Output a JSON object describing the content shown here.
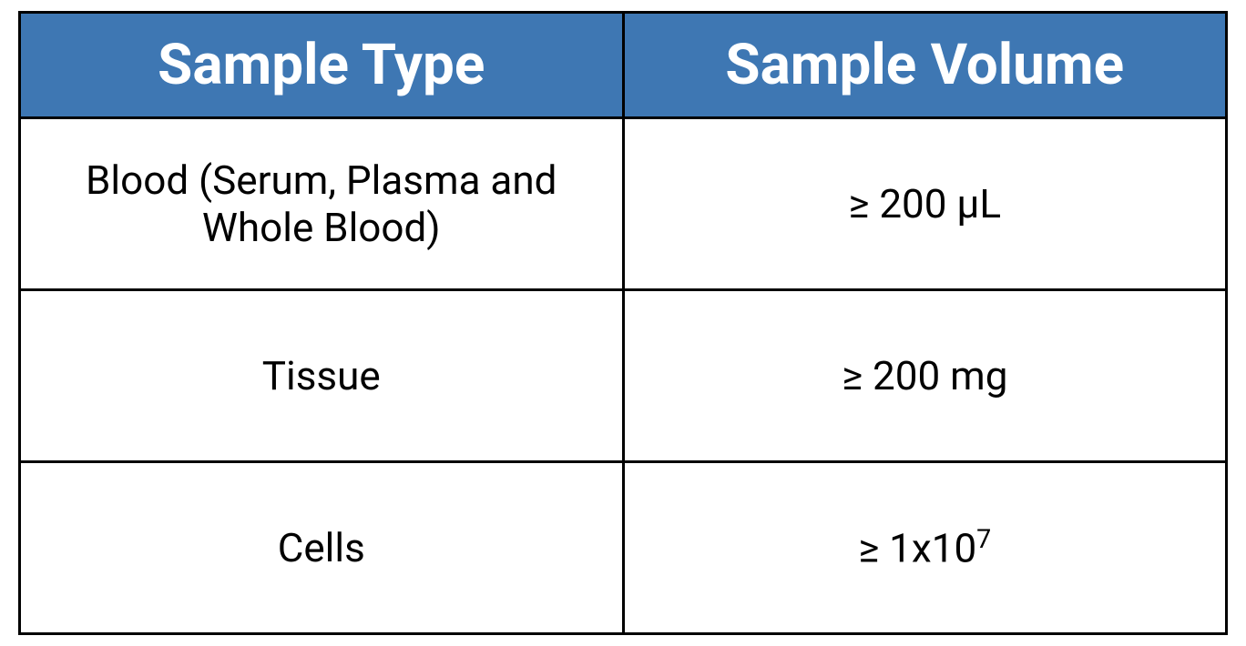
{
  "table": {
    "type": "table",
    "columns": [
      "Sample Type",
      "Sample Volume"
    ],
    "rows": [
      [
        "Blood (Serum, Plasma and Whole Blood)",
        "≥ 200 μL"
      ],
      [
        "Tissue",
        "≥ 200 mg"
      ],
      [
        "Cells",
        "≥ 1x10<sup>7</sup>"
      ]
    ],
    "styling": {
      "header_bg": "#3e77b3",
      "header_text": "#ffffff",
      "header_font_size": 62,
      "header_font_weight": 700,
      "cell_bg": "#ffffff",
      "cell_text": "#000000",
      "cell_font_size": 44,
      "cell_font_weight": 400,
      "border_color": "#000000",
      "border_width": 3,
      "column_widths": [
        "50%",
        "50%"
      ],
      "text_align": "center",
      "header_row_height": "20%",
      "body_row_height": "26.66%"
    }
  }
}
